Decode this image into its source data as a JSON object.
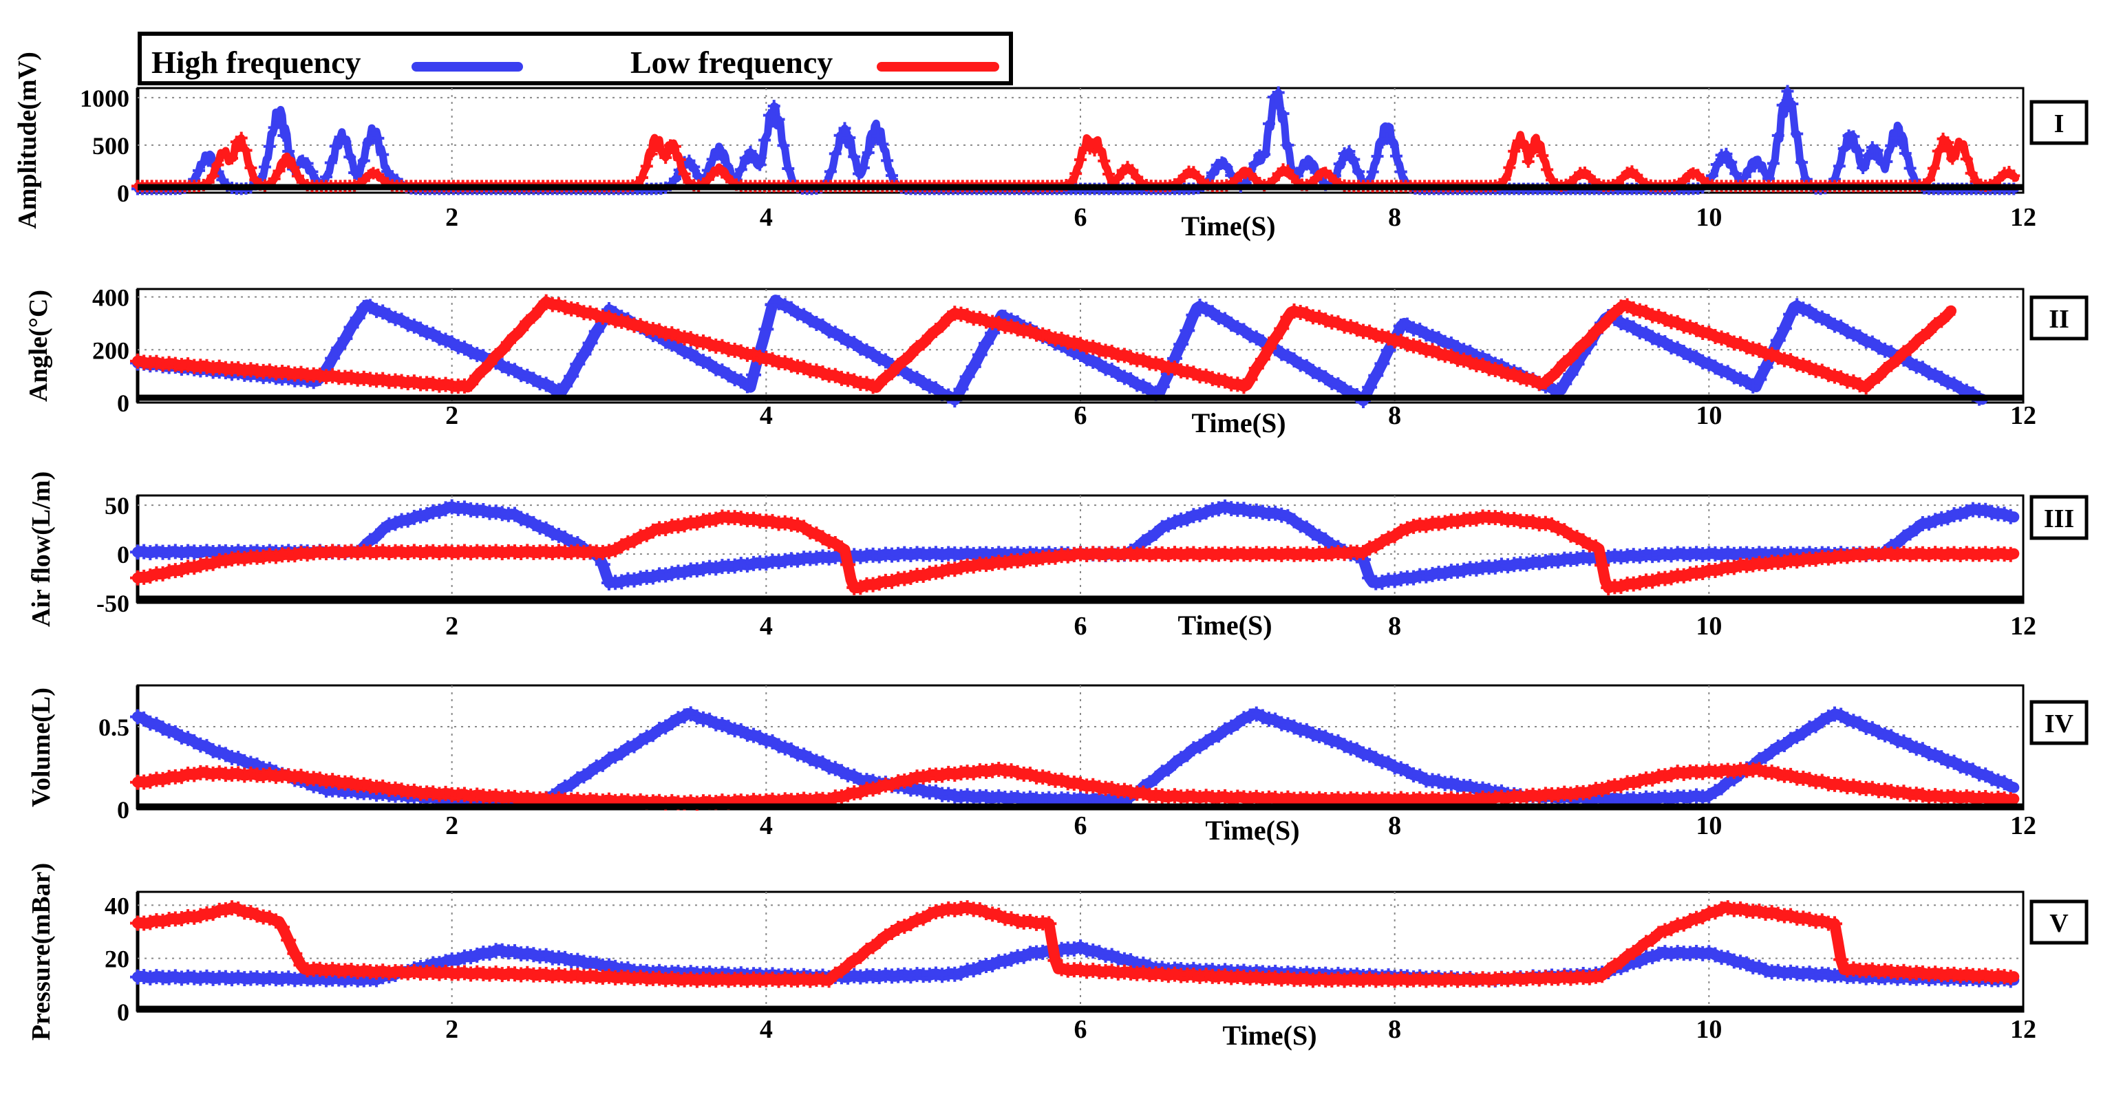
{
  "colors": {
    "high": "#3a3ff0",
    "low": "#ff1a1a",
    "axis": "#000000"
  },
  "legend": {
    "high_label": "High frequency",
    "low_label": "Low frequency"
  },
  "chart_data": [
    {
      "type": "line",
      "id": "amplitude",
      "panel_label": "I",
      "ylabel": "Amplitude(mV)",
      "xlabel": "Time(S)",
      "xlim": [
        0,
        12
      ],
      "ylim": [
        0,
        1100
      ],
      "yticks": [
        0,
        500,
        1000
      ],
      "xticks": [
        2,
        4,
        6,
        8,
        10,
        12
      ],
      "series": [
        {
          "name": "High frequency",
          "baseline": 40,
          "span": 0.08,
          "bursts": [
            [
              0.45,
              380
            ],
            [
              0.85,
              230
            ],
            [
              0.9,
              860
            ],
            [
              1.05,
              320
            ],
            [
              1.3,
              600
            ],
            [
              1.5,
              650
            ],
            [
              1.6,
              140
            ],
            [
              3.5,
              300
            ],
            [
              3.7,
              450
            ],
            [
              3.9,
              400
            ],
            [
              4.05,
              900
            ],
            [
              4.5,
              650
            ],
            [
              4.7,
              700
            ],
            [
              6.9,
              300
            ],
            [
              7.15,
              380
            ],
            [
              7.25,
              1030
            ],
            [
              7.45,
              320
            ],
            [
              7.7,
              400
            ],
            [
              7.95,
              700
            ],
            [
              10.1,
              380
            ],
            [
              10.3,
              320
            ],
            [
              10.5,
              1030
            ],
            [
              10.9,
              600
            ],
            [
              11.05,
              450
            ],
            [
              11.2,
              680
            ]
          ]
        },
        {
          "name": "Low frequency",
          "baseline": 70,
          "span": 0.07,
          "bursts": [
            [
              0.55,
              380
            ],
            [
              0.65,
              520
            ],
            [
              0.95,
              320
            ],
            [
              1.5,
              150
            ],
            [
              3.3,
              530
            ],
            [
              3.4,
              470
            ],
            [
              3.7,
              200
            ],
            [
              6.05,
              520
            ],
            [
              6.1,
              500
            ],
            [
              6.3,
              200
            ],
            [
              6.7,
              160
            ],
            [
              7.05,
              170
            ],
            [
              7.3,
              180
            ],
            [
              7.55,
              160
            ],
            [
              8.8,
              540
            ],
            [
              8.9,
              520
            ],
            [
              9.2,
              150
            ],
            [
              9.5,
              160
            ],
            [
              9.9,
              150
            ],
            [
              11.5,
              510
            ],
            [
              11.6,
              480
            ],
            [
              11.9,
              150
            ]
          ]
        }
      ]
    },
    {
      "type": "line",
      "id": "angle",
      "panel_label": "II",
      "ylabel": "Angle(°C)",
      "xlabel": "Time(S)",
      "xlim": [
        0,
        12
      ],
      "ylim": [
        0,
        430
      ],
      "yticks": [
        0,
        200,
        400
      ],
      "xticks": [
        2,
        4,
        6,
        8,
        10,
        12
      ],
      "series": [
        {
          "name": "High frequency",
          "x": [
            0,
            1.15,
            1.45,
            2.7,
            3.0,
            3.9,
            4.05,
            5.2,
            5.5,
            6.5,
            6.75,
            7.8,
            8.05,
            9.05,
            9.35,
            10.3,
            10.55,
            11.75
          ],
          "y": [
            150,
            80,
            370,
            40,
            350,
            60,
            390,
            10,
            330,
            30,
            370,
            10,
            300,
            40,
            330,
            60,
            370,
            10
          ]
        },
        {
          "name": "Low frequency",
          "x": [
            0,
            2.1,
            2.6,
            4.7,
            5.2,
            7.05,
            7.35,
            8.95,
            9.45,
            11.0,
            11.55
          ],
          "y": [
            155,
            60,
            380,
            60,
            340,
            60,
            350,
            70,
            370,
            60,
            350
          ]
        }
      ]
    },
    {
      "type": "line",
      "id": "airflow",
      "panel_label": "III",
      "ylabel": "Air flow(L/m)",
      "xlabel": "Time(S)",
      "xlim": [
        0,
        12
      ],
      "ylim": [
        -50,
        60
      ],
      "yticks": [
        -50,
        0,
        50
      ],
      "xticks": [
        2,
        4,
        6,
        8,
        10,
        12
      ],
      "series": [
        {
          "name": "High frequency",
          "x": [
            0,
            1.4,
            1.6,
            2.0,
            2.4,
            2.8,
            2.95,
            3.0,
            3.6,
            4.3,
            4.9,
            5.6,
            6.3,
            6.55,
            6.9,
            7.3,
            7.65,
            7.8,
            7.85,
            8.5,
            9.2,
            9.8,
            10.6,
            11.1,
            11.35,
            11.7,
            11.95
          ],
          "y": [
            2,
            2,
            30,
            48,
            40,
            10,
            -5,
            -30,
            -15,
            -4,
            0,
            0,
            0,
            30,
            48,
            40,
            5,
            -5,
            -30,
            -15,
            -4,
            0,
            0,
            0,
            30,
            46,
            38
          ]
        },
        {
          "name": "Low frequency",
          "x": [
            0,
            0.6,
            1.2,
            2.5,
            3.0,
            3.3,
            3.75,
            4.2,
            4.5,
            4.55,
            5.3,
            6.0,
            7.5,
            7.8,
            8.1,
            8.6,
            9.0,
            9.3,
            9.35,
            10.2,
            11.0,
            11.95
          ],
          "y": [
            -25,
            -5,
            2,
            2,
            2,
            25,
            38,
            30,
            5,
            -35,
            -12,
            0,
            0,
            2,
            28,
            38,
            30,
            5,
            -35,
            -12,
            0,
            0
          ]
        }
      ]
    },
    {
      "type": "line",
      "id": "volume",
      "panel_label": "IV",
      "ylabel": "Volume(L)",
      "xlabel": "Time(S)",
      "xlim": [
        0,
        12
      ],
      "ylim": [
        0,
        0.75
      ],
      "yticks": [
        0,
        0.5
      ],
      "xticks": [
        2,
        4,
        6,
        8,
        10,
        12
      ],
      "series": [
        {
          "name": "High frequency",
          "x": [
            0,
            0.5,
            1.2,
            2.0,
            2.6,
            3.0,
            3.5,
            4.0,
            4.6,
            5.2,
            5.8,
            6.3,
            6.7,
            7.1,
            7.6,
            8.2,
            8.8,
            9.5,
            10.0,
            10.4,
            10.8,
            11.3,
            11.95
          ],
          "y": [
            0.56,
            0.35,
            0.12,
            0.06,
            0.06,
            0.3,
            0.58,
            0.42,
            0.18,
            0.08,
            0.06,
            0.06,
            0.35,
            0.58,
            0.42,
            0.18,
            0.08,
            0.06,
            0.08,
            0.35,
            0.58,
            0.38,
            0.13
          ]
        },
        {
          "name": "Low frequency",
          "x": [
            0,
            0.4,
            1.0,
            1.8,
            2.6,
            3.5,
            4.4,
            5.0,
            5.5,
            6.0,
            6.5,
            7.5,
            8.5,
            9.2,
            9.8,
            10.3,
            10.8,
            11.4,
            11.95
          ],
          "y": [
            0.16,
            0.22,
            0.2,
            0.1,
            0.06,
            0.04,
            0.06,
            0.2,
            0.24,
            0.15,
            0.08,
            0.06,
            0.06,
            0.1,
            0.22,
            0.24,
            0.15,
            0.08,
            0.06
          ]
        }
      ]
    },
    {
      "type": "line",
      "id": "pressure",
      "panel_label": "V",
      "ylabel": "Pressure(mBar)",
      "xlabel": "Time(S)",
      "xlim": [
        0,
        12
      ],
      "ylim": [
        0,
        45
      ],
      "yticks": [
        0,
        20,
        40
      ],
      "xticks": [
        2,
        4,
        6,
        8,
        10,
        12
      ],
      "series": [
        {
          "name": "High frequency",
          "x": [
            0,
            1.5,
            1.9,
            2.3,
            2.7,
            3.2,
            4.4,
            5.2,
            5.7,
            6.0,
            6.5,
            7.5,
            8.6,
            9.3,
            9.7,
            10.0,
            10.4,
            11.0,
            11.95
          ],
          "y": [
            13,
            12,
            18,
            23,
            20,
            15,
            13,
            14,
            22,
            24,
            16,
            14,
            12,
            14,
            22,
            22,
            15,
            13,
            12
          ]
        },
        {
          "name": "Low frequency",
          "x": [
            0,
            0.4,
            0.6,
            0.9,
            1.05,
            1.5,
            2.5,
            3.5,
            4.4,
            4.8,
            5.1,
            5.3,
            5.6,
            5.8,
            5.85,
            6.5,
            7.5,
            8.5,
            9.3,
            9.7,
            10.1,
            10.4,
            10.8,
            10.85,
            11.5,
            11.95
          ],
          "y": [
            33,
            36,
            39,
            34,
            16,
            15,
            14,
            12,
            12,
            30,
            38,
            39,
            34,
            33,
            16,
            14,
            12,
            12,
            13,
            30,
            39,
            37,
            33,
            16,
            14,
            13
          ]
        }
      ]
    }
  ]
}
